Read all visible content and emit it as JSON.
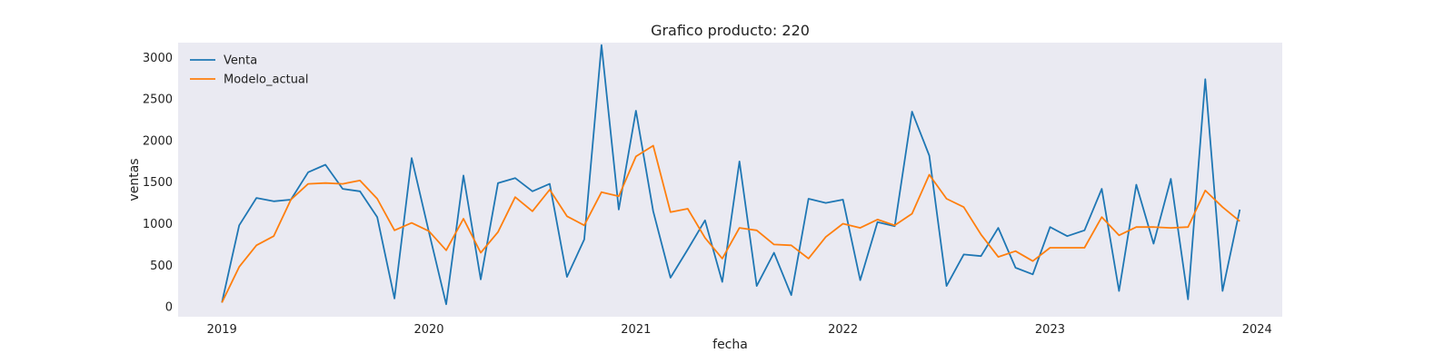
{
  "chart_data": {
    "type": "line",
    "title": "Grafico producto: 220",
    "xlabel": "fecha",
    "ylabel": "ventas",
    "x_start": "2019-01",
    "x_ticks": [
      "2019",
      "2020",
      "2021",
      "2022",
      "2023",
      "2024"
    ],
    "y_ticks": [
      0,
      500,
      1000,
      1500,
      2000,
      2500,
      3000
    ],
    "xlim": [
      "2018-10-15",
      "2024-02-15"
    ],
    "ylim": [
      -120,
      3180
    ],
    "grid": false,
    "legend_position": "top-left",
    "background": "#eaeaf2",
    "series": [
      {
        "name": "Venta",
        "color": "#1f77b4",
        "values": [
          50,
          980,
          1310,
          1270,
          1290,
          1620,
          1710,
          1420,
          1390,
          1080,
          100,
          1790,
          900,
          30,
          1580,
          330,
          1490,
          1550,
          1390,
          1480,
          360,
          810,
          3150,
          1170,
          2360,
          1150,
          350,
          690,
          1040,
          300,
          1750,
          250,
          650,
          140,
          1300,
          1250,
          1290,
          320,
          1020,
          970,
          2350,
          1820,
          250,
          630,
          610,
          950,
          470,
          390,
          960,
          850,
          920,
          1420,
          190,
          1470,
          760,
          1540,
          90,
          2740,
          190,
          1170
        ]
      },
      {
        "name": "Modelo_actual",
        "color": "#ff7f0e",
        "values": [
          50,
          480,
          740,
          850,
          1290,
          1480,
          1490,
          1480,
          1520,
          1300,
          920,
          1010,
          910,
          680,
          1060,
          650,
          900,
          1320,
          1150,
          1410,
          1090,
          980,
          1380,
          1330,
          1810,
          1940,
          1140,
          1180,
          830,
          580,
          950,
          920,
          750,
          740,
          580,
          840,
          1000,
          950,
          1050,
          980,
          1120,
          1590,
          1300,
          1200,
          870,
          600,
          670,
          550,
          710,
          710,
          710,
          1080,
          860,
          960,
          960,
          950,
          960,
          1400,
          1200,
          1030
        ]
      }
    ]
  }
}
